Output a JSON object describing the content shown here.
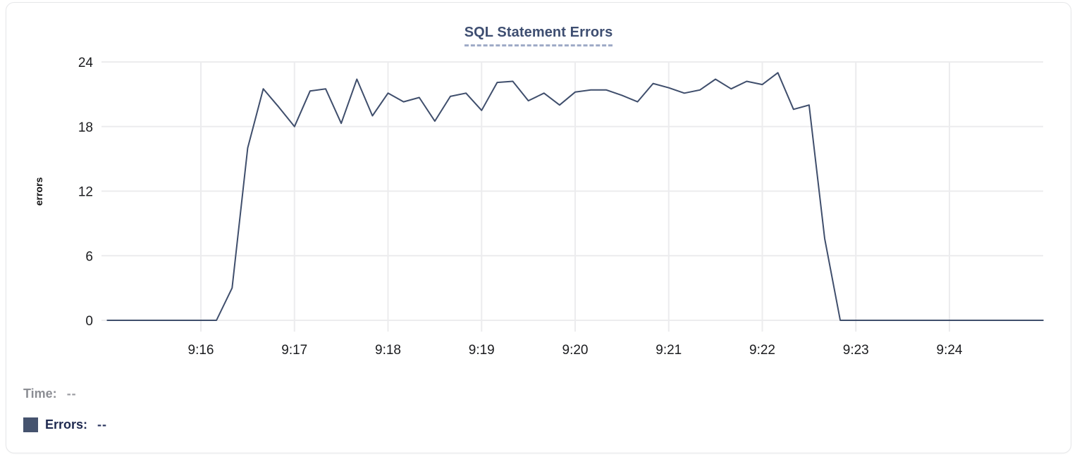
{
  "card": {
    "title": "SQL Statement Errors"
  },
  "chart_data": {
    "type": "line",
    "title": "SQL Statement Errors",
    "xlabel": "",
    "ylabel": "errors",
    "ylim": [
      0,
      24
    ],
    "y_ticks": [
      0,
      6,
      12,
      18,
      24
    ],
    "x_tick_labels": [
      "9:16",
      "9:17",
      "9:18",
      "9:19",
      "9:20",
      "9:21",
      "9:22",
      "9:23",
      "9:24"
    ],
    "x_start_time": "9:15:00",
    "x_end_time": "9:25:00",
    "sample_interval_seconds": 10,
    "grid": true,
    "legend_position": "bottom-readout",
    "series": [
      {
        "name": "Errors",
        "color": "#3f4e6c",
        "values": [
          0,
          0,
          0,
          0,
          0,
          0,
          0,
          0,
          3,
          16,
          21.5,
          19.8,
          18,
          21.3,
          21.5,
          18.3,
          22.4,
          19,
          21.1,
          20.3,
          20.7,
          18.5,
          20.8,
          21.1,
          19.5,
          22.1,
          22.2,
          20.4,
          21.1,
          20,
          21.2,
          21.4,
          21.4,
          20.9,
          20.3,
          22,
          21.6,
          21.1,
          21.4,
          22.4,
          21.5,
          22.2,
          21.9,
          23,
          19.6,
          20,
          7.6,
          0,
          0,
          0,
          0,
          0,
          0,
          0,
          0,
          0,
          0,
          0,
          0,
          0,
          0
        ]
      }
    ]
  },
  "footer": {
    "time_label": "Time:",
    "time_value": "--",
    "errors_label": "Errors:",
    "errors_value": "--",
    "errors_swatch_color": "#45536e"
  },
  "colors": {
    "line": "#3f4e6c",
    "grid": "#ececee",
    "tick_label": "#1b1c1f",
    "title": "#3e4e71",
    "card_border": "#e6e7e9"
  }
}
